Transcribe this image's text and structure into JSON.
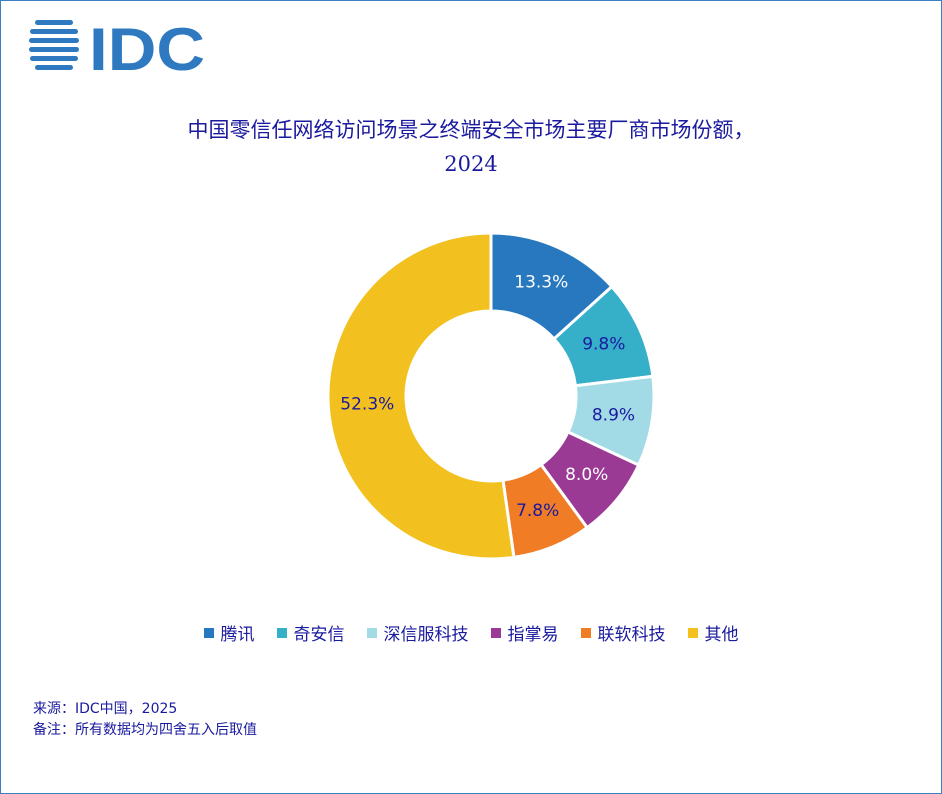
{
  "logo": {
    "text": "IDC",
    "color": "#2f79c0"
  },
  "chart_data": {
    "type": "pie",
    "variant": "donut",
    "title": "中国零信任网络访问场景之终端安全市场主要厂商市场份额，",
    "subtitle": "2024",
    "unit": "%",
    "categories": [
      "腾讯",
      "奇安信",
      "深信服科技",
      "指掌易",
      "联软科技",
      "其他"
    ],
    "values": [
      13.3,
      9.8,
      8.9,
      8.0,
      7.8,
      52.3
    ],
    "labels": [
      "13.3%",
      "9.8%",
      "8.9%",
      "8.0%",
      "7.8%",
      "52.3%"
    ],
    "colors": [
      "#2878c0",
      "#36afc9",
      "#a2dbe6",
      "#9a3a95",
      "#f07c26",
      "#f2c11f"
    ],
    "label_colors": [
      "#ffffff",
      "#1a1a9e",
      "#1a1a9e",
      "#ffffff",
      "#1a1a9e",
      "#1a1a9e"
    ],
    "legend_position": "bottom"
  },
  "footer": {
    "source": "来源：IDC中国，2025",
    "note": "备注：所有数据均为四舍五入后取值"
  }
}
